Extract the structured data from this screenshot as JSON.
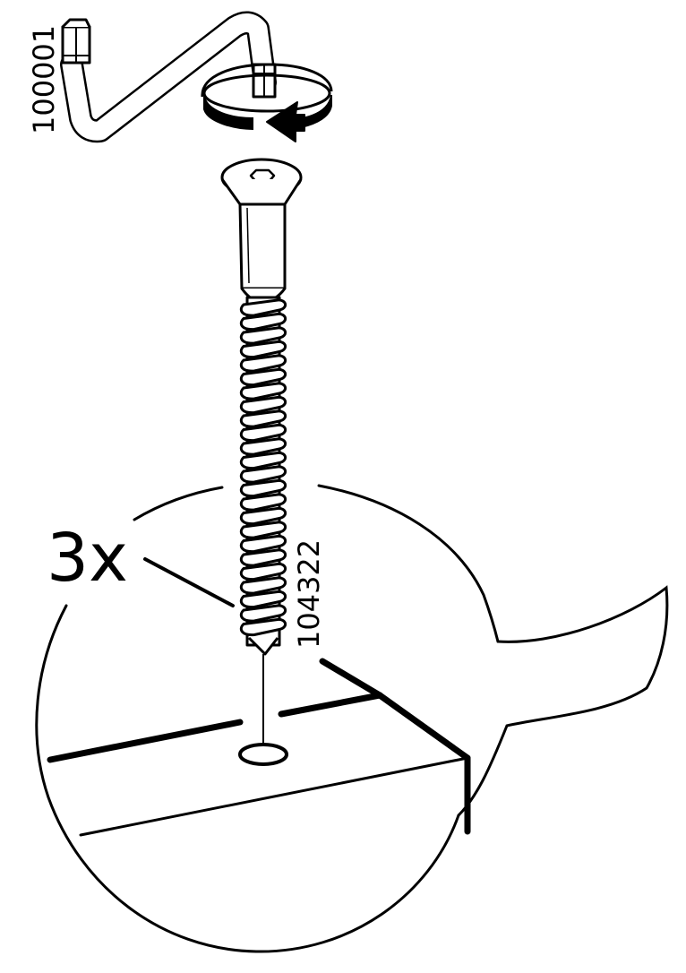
{
  "instruction": {
    "tool_part_number": "100001",
    "screw_part_number": "104322",
    "quantity_label": "3x"
  },
  "colors": {
    "ink": "#000000",
    "paper": "#ffffff"
  },
  "icons": [
    "allen-key-icon",
    "rotate-arrow-icon",
    "screw-icon",
    "pre-drilled-hole-icon"
  ]
}
